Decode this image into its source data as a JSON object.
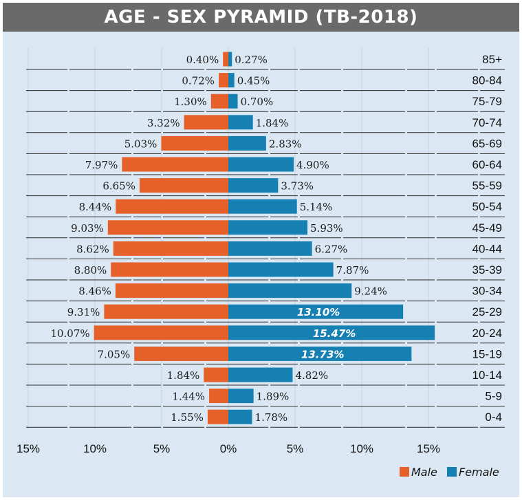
{
  "chart_data": {
    "type": "bar",
    "title": "AGE - SEX PYRAMID (TB-2018)",
    "categories": [
      "85+",
      "80-84",
      "75-79",
      "70-74",
      "65-69",
      "60-64",
      "55-59",
      "50-54",
      "45-49",
      "40-44",
      "35-39",
      "30-34",
      "25-29",
      "20-24",
      "15-19",
      "10-14",
      "5-9",
      "0-4"
    ],
    "series": [
      {
        "name": "Male",
        "values": [
          0.4,
          0.72,
          1.3,
          3.32,
          5.03,
          7.97,
          6.65,
          8.44,
          9.03,
          8.62,
          8.8,
          8.46,
          9.31,
          10.07,
          7.05,
          1.84,
          1.44,
          1.55
        ],
        "labels": [
          "0.40%",
          "0.72%",
          "1.30%",
          "3.32%",
          "5.03%",
          "7.97%",
          "6.65%",
          "8.44%",
          "9.03%",
          "8.62%",
          "8.80%",
          "8.46%",
          "9.31%",
          "10.07%",
          "7.05%",
          "1.84%",
          "1.44%",
          "1.55%"
        ]
      },
      {
        "name": "Female",
        "values": [
          0.27,
          0.45,
          0.7,
          1.84,
          2.83,
          4.9,
          3.73,
          5.14,
          5.93,
          6.27,
          7.87,
          9.24,
          13.1,
          15.47,
          13.73,
          4.82,
          1.89,
          1.78
        ],
        "labels": [
          "0.27%",
          "0.45%",
          "0.70%",
          "1.84%",
          "2.83%",
          "4.90%",
          "3.73%",
          "5.14%",
          "5.93%",
          "6.27%",
          "7.87%",
          "9.24%",
          "13.10%",
          "15.47%",
          "13.73%",
          "4.82%",
          "1.89%",
          "1.78%"
        ]
      }
    ],
    "x_ticks": [
      "15%",
      "10%",
      "5%",
      "0%",
      "5%",
      "10%",
      "15%"
    ],
    "xlim": [
      -15,
      15
    ],
    "legend_position": "bottom-right",
    "colors": {
      "male": "#e6612a",
      "female": "#1780b3",
      "background": "#dbe8f3",
      "title_bar": "#6a6a6a"
    }
  }
}
